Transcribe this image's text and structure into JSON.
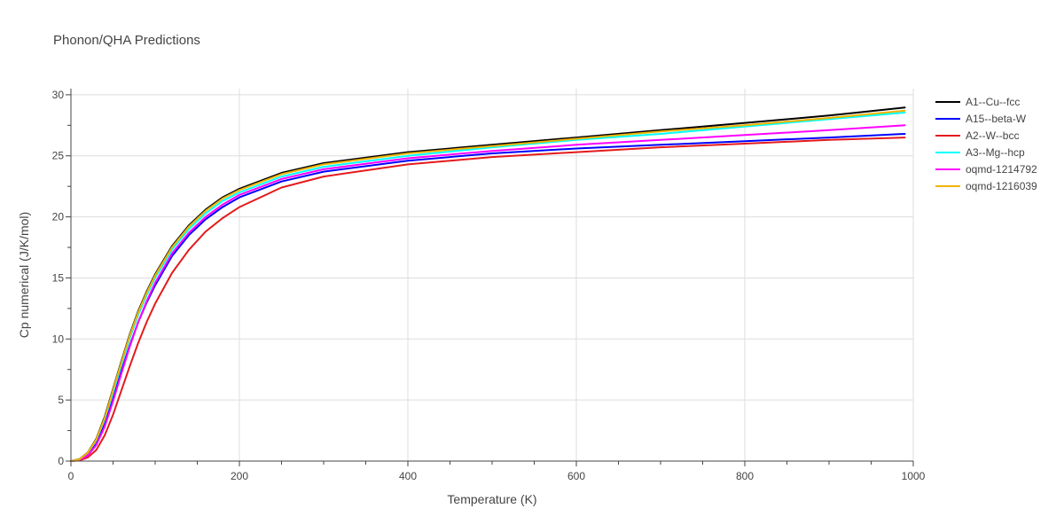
{
  "chart_data": {
    "type": "line",
    "title": "Phonon/QHA Predictions",
    "xlabel": "Temperature (K)",
    "ylabel": "Cp numerical (J/K/mol)",
    "xlim": [
      0,
      1000
    ],
    "ylim": [
      0,
      30.5
    ],
    "xticks": [
      0,
      200,
      400,
      600,
      800,
      1000
    ],
    "yticks": [
      0,
      5,
      10,
      15,
      20,
      25,
      30
    ],
    "grid": true,
    "legend_position": "right",
    "series": [
      {
        "name": "A1--Cu--fcc",
        "color": "#000000",
        "x": [
          0,
          10,
          20,
          30,
          40,
          50,
          60,
          70,
          80,
          90,
          100,
          120,
          140,
          160,
          180,
          200,
          250,
          300,
          400,
          500,
          600,
          700,
          800,
          900,
          990
        ],
        "y": [
          0,
          0.15,
          0.7,
          1.8,
          3.6,
          5.9,
          8.2,
          10.4,
          12.3,
          13.9,
          15.3,
          17.6,
          19.3,
          20.6,
          21.6,
          22.3,
          23.6,
          24.4,
          25.3,
          25.9,
          26.5,
          27.1,
          27.7,
          28.3,
          28.95
        ]
      },
      {
        "name": "A15--beta-W",
        "color": "#0000ff",
        "x": [
          0,
          10,
          20,
          30,
          40,
          50,
          60,
          70,
          80,
          90,
          100,
          120,
          140,
          160,
          180,
          200,
          250,
          300,
          400,
          500,
          600,
          700,
          800,
          900,
          990
        ],
        "y": [
          0,
          0.1,
          0.5,
          1.4,
          3.0,
          5.1,
          7.4,
          9.5,
          11.4,
          13.0,
          14.4,
          16.8,
          18.5,
          19.8,
          20.8,
          21.6,
          22.9,
          23.7,
          24.6,
          25.2,
          25.6,
          25.9,
          26.2,
          26.5,
          26.8
        ]
      },
      {
        "name": "A2--W--bcc",
        "color": "#e41a1c",
        "x": [
          0,
          10,
          20,
          30,
          40,
          50,
          60,
          70,
          80,
          90,
          100,
          120,
          140,
          160,
          180,
          200,
          250,
          300,
          400,
          500,
          600,
          700,
          800,
          900,
          990
        ],
        "y": [
          0,
          0.05,
          0.3,
          0.9,
          2.1,
          3.8,
          5.8,
          7.8,
          9.7,
          11.4,
          12.9,
          15.4,
          17.3,
          18.8,
          19.9,
          20.8,
          22.4,
          23.3,
          24.3,
          24.9,
          25.3,
          25.7,
          26.0,
          26.3,
          26.5
        ]
      },
      {
        "name": "A3--Mg--hcp",
        "color": "#00ffff",
        "x": [
          0,
          10,
          20,
          30,
          40,
          50,
          60,
          70,
          80,
          90,
          100,
          120,
          140,
          160,
          180,
          200,
          250,
          300,
          400,
          500,
          600,
          700,
          800,
          900,
          990
        ],
        "y": [
          0,
          0.13,
          0.65,
          1.7,
          3.4,
          5.6,
          7.9,
          10.1,
          12.0,
          13.6,
          15.0,
          17.3,
          19.0,
          20.3,
          21.3,
          22.0,
          23.3,
          24.1,
          25.0,
          25.7,
          26.3,
          26.8,
          27.4,
          28.0,
          28.55
        ]
      },
      {
        "name": "oqmd-1214792",
        "color": "#ff00ff",
        "x": [
          0,
          10,
          20,
          30,
          40,
          50,
          60,
          70,
          80,
          90,
          100,
          120,
          140,
          160,
          180,
          200,
          250,
          300,
          400,
          500,
          600,
          700,
          800,
          900,
          990
        ],
        "y": [
          0,
          0.1,
          0.45,
          1.3,
          2.8,
          4.9,
          7.2,
          9.4,
          11.4,
          13.1,
          14.6,
          17.0,
          18.7,
          20.0,
          21.0,
          21.8,
          23.1,
          23.9,
          24.8,
          25.4,
          25.9,
          26.3,
          26.7,
          27.1,
          27.5
        ]
      },
      {
        "name": "oqmd-1216039",
        "color": "#f0b400",
        "x": [
          0,
          10,
          20,
          30,
          40,
          50,
          60,
          70,
          80,
          90,
          100,
          120,
          140,
          160,
          180,
          200,
          250,
          300,
          400,
          500,
          600,
          700,
          800,
          900,
          990
        ],
        "y": [
          0,
          0.14,
          0.68,
          1.75,
          3.5,
          5.8,
          8.1,
          10.3,
          12.2,
          13.8,
          15.2,
          17.5,
          19.2,
          20.5,
          21.5,
          22.2,
          23.5,
          24.3,
          25.2,
          25.8,
          26.4,
          27.0,
          27.5,
          28.1,
          28.7
        ]
      }
    ]
  }
}
